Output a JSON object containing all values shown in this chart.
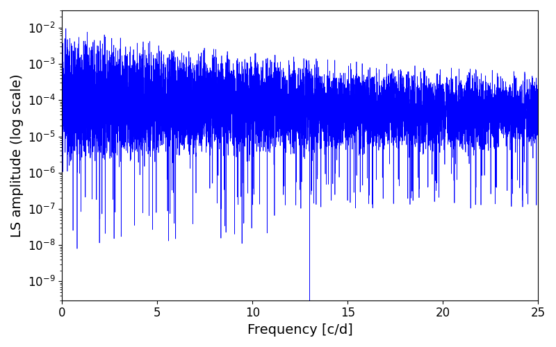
{
  "xlabel": "Frequency [c/d]",
  "ylabel": "LS amplitude (log scale)",
  "xlim": [
    0,
    25
  ],
  "ylim": [
    3e-10,
    0.03
  ],
  "line_color": "#0000ff",
  "line_width": 0.5,
  "background_color": "#ffffff",
  "seed": 7,
  "n_points": 8000,
  "freq_max": 25.0,
  "tick_label_size": 12,
  "label_size": 14
}
